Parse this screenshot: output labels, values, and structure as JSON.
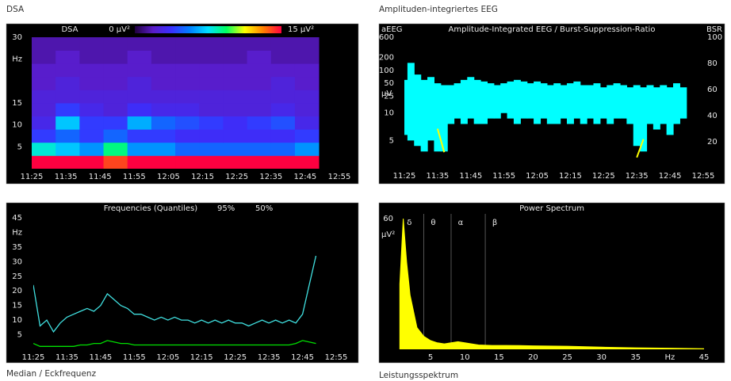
{
  "chart_data": [
    {
      "type": "heatmap",
      "panel_label": "DSA",
      "title": "DSA",
      "time_bins": [
        "11:25",
        "11:32",
        "11:39",
        "11:46",
        "11:53",
        "12:00",
        "12:07",
        "12:14",
        "12:21",
        "12:28",
        "12:35",
        "12:42",
        "12:49"
      ],
      "freq_bins": [
        0,
        3,
        6,
        9,
        12,
        15,
        18,
        21,
        24,
        27,
        30
      ],
      "values": [
        [
          15,
          15,
          15,
          14,
          15,
          15,
          15,
          15,
          15,
          15,
          15,
          15
        ],
        [
          8,
          7,
          6,
          9,
          6,
          6,
          5,
          5,
          5,
          5,
          5,
          6
        ],
        [
          4,
          5,
          4,
          5,
          4,
          4,
          3.5,
          3.5,
          3.5,
          3.5,
          3.5,
          4
        ],
        [
          3,
          7,
          4,
          4,
          6.5,
          5,
          4.5,
          4,
          3.5,
          4,
          4.5,
          3
        ],
        [
          2.5,
          4,
          3,
          2.5,
          3.5,
          3,
          3,
          2.5,
          2.5,
          2.5,
          3,
          2.5
        ],
        [
          2.5,
          2.5,
          2.5,
          2.5,
          2.5,
          2.5,
          2.5,
          2.5,
          2.5,
          2.5,
          2.5,
          2.5
        ],
        [
          2,
          2.5,
          2,
          2,
          2.5,
          2,
          2,
          2,
          2,
          2,
          2.5,
          2
        ],
        [
          2,
          2,
          2,
          2,
          2,
          2,
          2,
          2,
          2,
          2,
          2,
          2
        ],
        [
          1.5,
          2,
          1.5,
          1.5,
          2,
          1.5,
          1.5,
          1.5,
          1.5,
          2,
          1.5,
          1.5
        ],
        [
          1.5,
          1.5,
          1.5,
          1.5,
          1.5,
          1.5,
          1.5,
          1.5,
          1.5,
          1.5,
          1.5,
          1.5
        ]
      ],
      "colorscale": [
        "#200040",
        "#5a1cc8",
        "#3a30ff",
        "#0080ff",
        "#00e0ff",
        "#00ff60",
        "#ffff00",
        "#ff8000",
        "#ff0040"
      ],
      "zlim": [
        0,
        15
      ],
      "zticks": [
        {
          "value": 0,
          "label": "0 µV²"
        },
        {
          "value": 15,
          "label": "15 µV²"
        }
      ],
      "xlim": [
        "11:25",
        "12:55"
      ],
      "xticks": [
        "11:25",
        "11:35",
        "11:45",
        "11:55",
        "12:05",
        "12:15",
        "12:25",
        "12:35",
        "12:45",
        "12:55"
      ],
      "ylim": [
        0,
        30
      ],
      "yticks": [
        5,
        10,
        15,
        {
          "value": 25,
          "label": "Hz"
        },
        30
      ]
    },
    {
      "type": "aeeg",
      "panel_label": "Amplituden-integriertes EEG",
      "title": "Amplitude-Integrated EEG / Burst-Suppression-Ratio",
      "x": [
        "11:25",
        "11:27",
        "11:29",
        "11:31",
        "11:33",
        "11:35",
        "11:37",
        "11:39",
        "11:41",
        "11:43",
        "11:45",
        "11:47",
        "11:49",
        "11:51",
        "11:53",
        "11:55",
        "11:57",
        "11:59",
        "12:01",
        "12:03",
        "12:05",
        "12:07",
        "12:09",
        "12:11",
        "12:13",
        "12:15",
        "12:17",
        "12:19",
        "12:21",
        "12:23",
        "12:25",
        "12:27",
        "12:29",
        "12:31",
        "12:33",
        "12:35",
        "12:37",
        "12:39",
        "12:41",
        "12:43",
        "12:45",
        "12:47",
        "12:49"
      ],
      "series": [
        {
          "name": "aEEG",
          "color": "#00ffff",
          "low": [
            6,
            5,
            4,
            3,
            5,
            3,
            3,
            8,
            9,
            8,
            9,
            8,
            8,
            9,
            9,
            10,
            9,
            8,
            9,
            9,
            8,
            9,
            8,
            8,
            9,
            8,
            9,
            8,
            9,
            8,
            9,
            8,
            9,
            9,
            8,
            4,
            3,
            8,
            7,
            8,
            6,
            8,
            9
          ],
          "high": [
            60,
            150,
            80,
            60,
            70,
            50,
            45,
            45,
            50,
            60,
            70,
            60,
            55,
            50,
            45,
            50,
            55,
            60,
            55,
            50,
            55,
            50,
            45,
            50,
            45,
            50,
            55,
            45,
            45,
            50,
            40,
            45,
            50,
            45,
            40,
            45,
            40,
            45,
            40,
            45,
            40,
            50,
            40
          ]
        },
        {
          "name": "BSR",
          "color": "#ffff00",
          "axis": "y2",
          "values": [
            null,
            null,
            null,
            null,
            null,
            30,
            12,
            null,
            null,
            null,
            null,
            null,
            null,
            null,
            null,
            null,
            null,
            null,
            null,
            null,
            null,
            null,
            null,
            null,
            null,
            null,
            null,
            null,
            null,
            null,
            null,
            null,
            null,
            null,
            null,
            8,
            22,
            null,
            null,
            null,
            null,
            null,
            null
          ]
        }
      ],
      "xlim": [
        "11:25",
        "12:55"
      ],
      "xticks": [
        "11:25",
        "11:35",
        "11:45",
        "11:55",
        "12:05",
        "12:15",
        "12:25",
        "12:35",
        "12:45",
        "12:55"
      ],
      "ylim": [
        0,
        600
      ],
      "yscale": "semilog",
      "ysplit": 10,
      "yticks": [
        5,
        10,
        25,
        50,
        100,
        200,
        600
      ],
      "ylabel": "µV",
      "y2lim": [
        0,
        100
      ],
      "y2ticks": [
        20,
        40,
        60,
        80,
        100
      ]
    },
    {
      "type": "line",
      "panel_label": "Median / Eckfrequenz",
      "title": "Frequencies (Quantiles)",
      "x": [
        "11:25",
        "11:27",
        "11:29",
        "11:31",
        "11:33",
        "11:35",
        "11:37",
        "11:39",
        "11:41",
        "11:43",
        "11:45",
        "11:47",
        "11:49",
        "11:51",
        "11:53",
        "11:55",
        "11:57",
        "11:59",
        "12:01",
        "12:03",
        "12:05",
        "12:07",
        "12:09",
        "12:11",
        "12:13",
        "12:15",
        "12:17",
        "12:19",
        "12:21",
        "12:23",
        "12:25",
        "12:27",
        "12:29",
        "12:31",
        "12:33",
        "12:35",
        "12:37",
        "12:39",
        "12:41",
        "12:43",
        "12:45",
        "12:47",
        "12:49"
      ],
      "series": [
        {
          "name": "95%",
          "color": "#40e0e0",
          "values": [
            22,
            8,
            10,
            6,
            9,
            11,
            12,
            13,
            14,
            13,
            15,
            19,
            17,
            15,
            14,
            12,
            12,
            11,
            10,
            11,
            10,
            11,
            10,
            10,
            9,
            10,
            9,
            10,
            9,
            10,
            9,
            9,
            8,
            9,
            10,
            9,
            10,
            9,
            10,
            9,
            12,
            22,
            32
          ]
        },
        {
          "name": "50%",
          "color": "#00e000",
          "values": [
            2,
            1,
            1,
            1,
            1,
            1,
            1,
            1.5,
            1.5,
            2,
            2,
            3,
            2.5,
            2,
            2,
            1.5,
            1.5,
            1.5,
            1.5,
            1.5,
            1.5,
            1.5,
            1.5,
            1.5,
            1.5,
            1.5,
            1.5,
            1.5,
            1.5,
            1.5,
            1.5,
            1.5,
            1.5,
            1.5,
            1.5,
            1.5,
            1.5,
            1.5,
            1.5,
            2,
            3,
            2.5,
            2
          ]
        }
      ],
      "xlim": [
        "11:25",
        "12:55"
      ],
      "xticks": [
        "11:25",
        "11:35",
        "11:45",
        "11:55",
        "12:05",
        "12:15",
        "12:25",
        "12:35",
        "12:45",
        "12:55"
      ],
      "ylim": [
        0,
        45
      ],
      "yticks": [
        5,
        10,
        15,
        20,
        25,
        30,
        35,
        {
          "value": 40,
          "label": "Hz"
        },
        45
      ]
    },
    {
      "type": "area",
      "panel_label": "Leistungsspektrum",
      "title": "Power Spectrum",
      "x": [
        0.5,
        1,
        1.5,
        2,
        3,
        4,
        5,
        6,
        7,
        8,
        9,
        10,
        11,
        12,
        14,
        16,
        18,
        20,
        25,
        30,
        35,
        40,
        45
      ],
      "values": [
        30,
        60,
        40,
        25,
        10,
        6,
        4,
        3,
        2.5,
        3,
        3.5,
        3,
        2.5,
        2,
        1.8,
        1.8,
        1.7,
        1.6,
        1.4,
        1,
        0.7,
        0.5,
        0.3
      ],
      "color": "#ffff00",
      "xlim": [
        0,
        45
      ],
      "xticks": [
        5,
        10,
        15,
        20,
        25,
        30,
        35,
        {
          "value": 40,
          "label": "Hz"
        },
        45
      ],
      "ylim": [
        0,
        60
      ],
      "yticks": [
        60
      ],
      "ylabel": "µV²",
      "bands": [
        {
          "label": "δ",
          "from": 0.5,
          "to": 4
        },
        {
          "label": "θ",
          "from": 4,
          "to": 8
        },
        {
          "label": "α",
          "from": 8,
          "to": 13
        },
        {
          "label": "β",
          "from": 13,
          "to": 30
        }
      ]
    }
  ]
}
